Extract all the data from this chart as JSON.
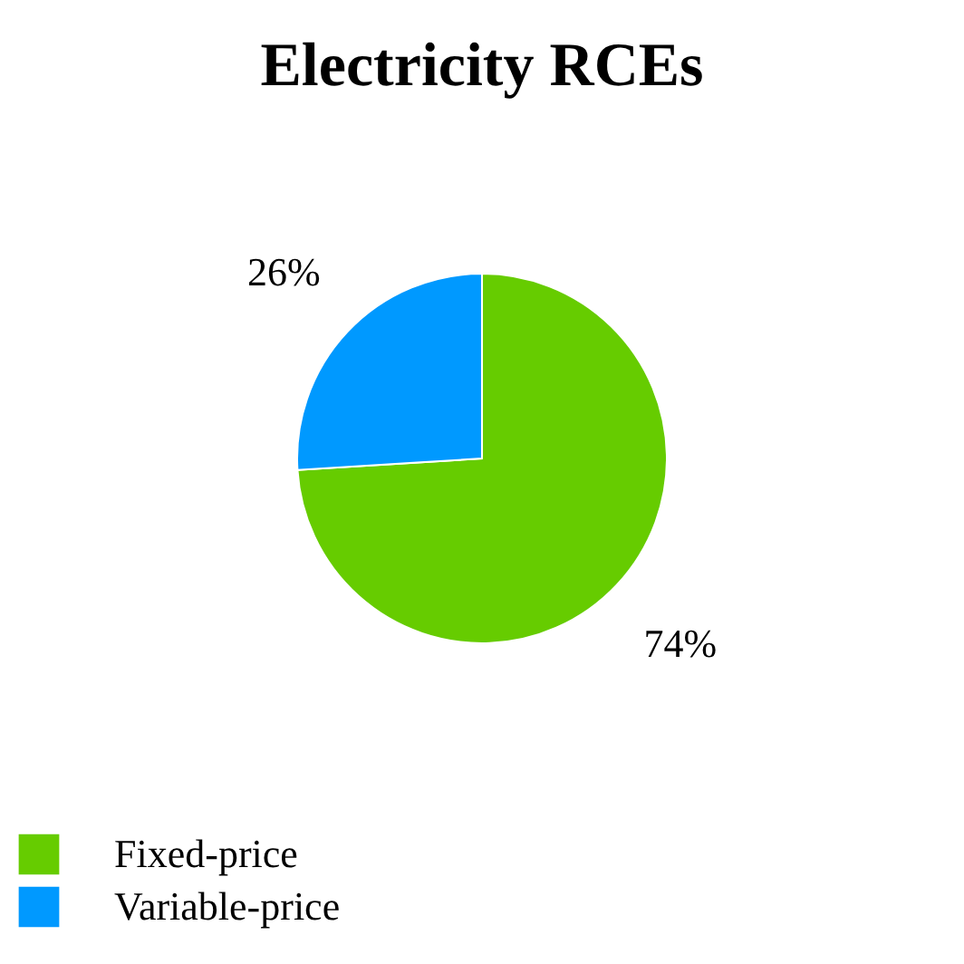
{
  "chart_data": {
    "type": "pie",
    "title": "Electricity RCEs",
    "categories": [
      "Fixed-price",
      "Variable-price"
    ],
    "values": [
      74,
      26
    ],
    "colors": [
      "#66cc00",
      "#0099ff"
    ],
    "value_labels": [
      "74%",
      "26%"
    ],
    "legend": "bottom"
  }
}
